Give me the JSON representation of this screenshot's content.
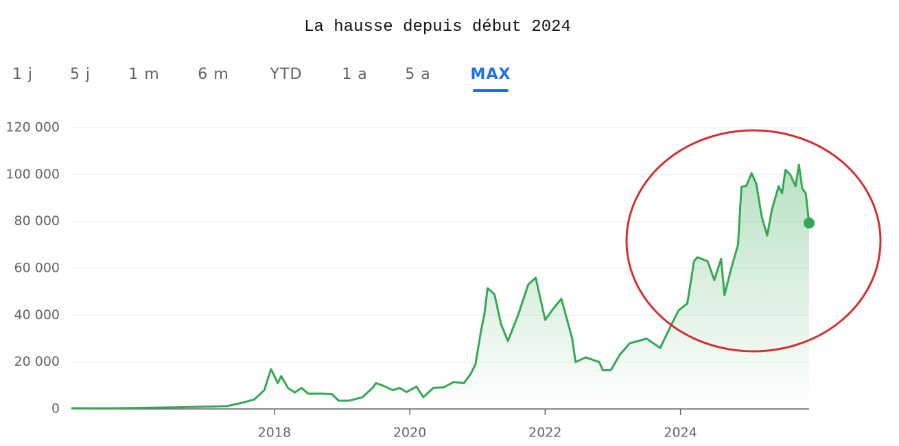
{
  "tabs": [
    "1 j",
    "5 j",
    "1 m",
    "6 m",
    "YTD",
    "1 a",
    "5 a",
    "MAX"
  ],
  "selected_tab": 7,
  "chart_data": {
    "type": "line",
    "title": "La hausse depuis début 2024",
    "color": "#34a853",
    "grid": true,
    "xlim": [
      2015,
      2025.9
    ],
    "xticks": [
      2018,
      2020,
      2022,
      2024
    ],
    "ylim": [
      0,
      120000
    ],
    "yticks": [
      {
        "value": 0,
        "label": "0"
      },
      {
        "value": 20000,
        "label": "20 000"
      },
      {
        "value": 40000,
        "label": "40 000"
      },
      {
        "value": 60000,
        "label": "60 000"
      },
      {
        "value": 80000,
        "label": "80 000"
      },
      {
        "value": 100000,
        "label": "100 000"
      },
      {
        "value": 120000,
        "label": "120 000"
      }
    ],
    "x": [
      2015,
      2015.5,
      2016,
      2016.5,
      2017,
      2017.3,
      2017.5,
      2017.7,
      2017.85,
      2017.95,
      2018.05,
      2018.1,
      2018.2,
      2018.3,
      2018.4,
      2018.5,
      2018.7,
      2018.85,
      2018.95,
      2019.1,
      2019.3,
      2019.45,
      2019.5,
      2019.6,
      2019.75,
      2019.85,
      2019.95,
      2020.1,
      2020.2,
      2020.35,
      2020.5,
      2020.65,
      2020.8,
      2020.9,
      2020.97,
      2021.05,
      2021.1,
      2021.15,
      2021.25,
      2021.35,
      2021.45,
      2021.6,
      2021.75,
      2021.86,
      2022.0,
      2022.1,
      2022.24,
      2022.4,
      2022.45,
      2022.6,
      2022.8,
      2022.85,
      2022.97,
      2023.1,
      2023.25,
      2023.5,
      2023.7,
      2023.85,
      2023.97,
      2024.1,
      2024.2,
      2024.25,
      2024.4,
      2024.5,
      2024.6,
      2024.65,
      2024.75,
      2024.85,
      2024.9,
      2024.97,
      2025.05,
      2025.12,
      2025.2,
      2025.28,
      2025.35,
      2025.45,
      2025.5,
      2025.55,
      2025.62,
      2025.7,
      2025.75,
      2025.8,
      2025.85,
      2025.9
    ],
    "values": [
      300,
      250,
      430,
      650,
      1000,
      1200,
      2500,
      4000,
      8000,
      17000,
      11000,
      14000,
      9000,
      7000,
      9000,
      6500,
      6500,
      6300,
      3500,
      3500,
      5000,
      9000,
      11000,
      10000,
      8000,
      9000,
      7200,
      9500,
      5000,
      9000,
      9200,
      11500,
      11000,
      15000,
      19000,
      33000,
      40000,
      51500,
      49000,
      36000,
      29000,
      40000,
      53000,
      56000,
      38000,
      42000,
      47000,
      30000,
      20000,
      22000,
      20000,
      16500,
      16500,
      23000,
      28000,
      30000,
      26000,
      35000,
      42000,
      45000,
      63000,
      64700,
      63000,
      55000,
      64000,
      48600,
      60000,
      70000,
      94800,
      95000,
      100600,
      96000,
      82000,
      74000,
      85000,
      95000,
      92000,
      102000,
      100000,
      95000,
      104200,
      94000,
      92000,
      79300
    ]
  }
}
